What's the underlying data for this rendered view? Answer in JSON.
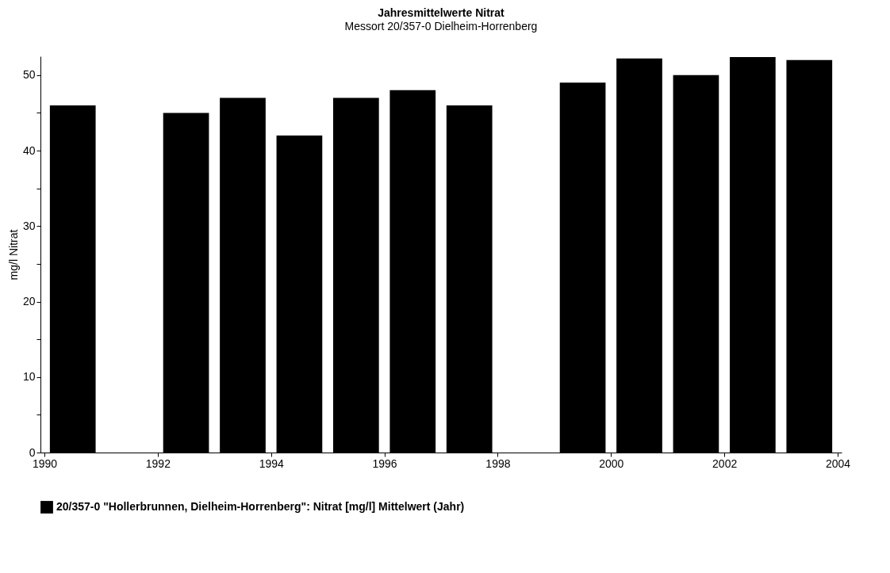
{
  "chart_data": {
    "type": "bar",
    "title": "Jahresmittelwerte Nitrat",
    "subtitle": "Messort 20/357-0 Dielheim-Horrenberg",
    "ylabel": "mg/l Nitrat",
    "x": [
      1990.5,
      1992.5,
      1993.5,
      1994.5,
      1995.5,
      1996.5,
      1997.5,
      1999.5,
      2000.5,
      2001.5,
      2002.5,
      2003.5
    ],
    "series": [
      {
        "name": "20/357-0 \"Hollerbrunnen, Dielheim-Horrenberg\": Nitrat [mg/l] Mittelwert (Jahr)",
        "color": "#000000",
        "values": [
          46,
          45,
          47,
          42,
          47,
          48,
          46,
          49,
          52.2,
          50,
          52.4,
          52
        ]
      }
    ],
    "xlim": [
      1990,
      2004
    ],
    "xticks": [
      1990,
      1992,
      1994,
      1996,
      1998,
      2000,
      2002,
      2004
    ],
    "ylim": [
      0,
      52.5
    ],
    "yticks": [
      0,
      {
        "value": 5,
        "label": null
      },
      10,
      {
        "value": 15,
        "label": null
      },
      20,
      {
        "value": 25,
        "label": null
      },
      30,
      {
        "value": 35,
        "label": null
      },
      40,
      {
        "value": 45,
        "label": null
      },
      50
    ],
    "grid": false,
    "legend": "bottom"
  }
}
